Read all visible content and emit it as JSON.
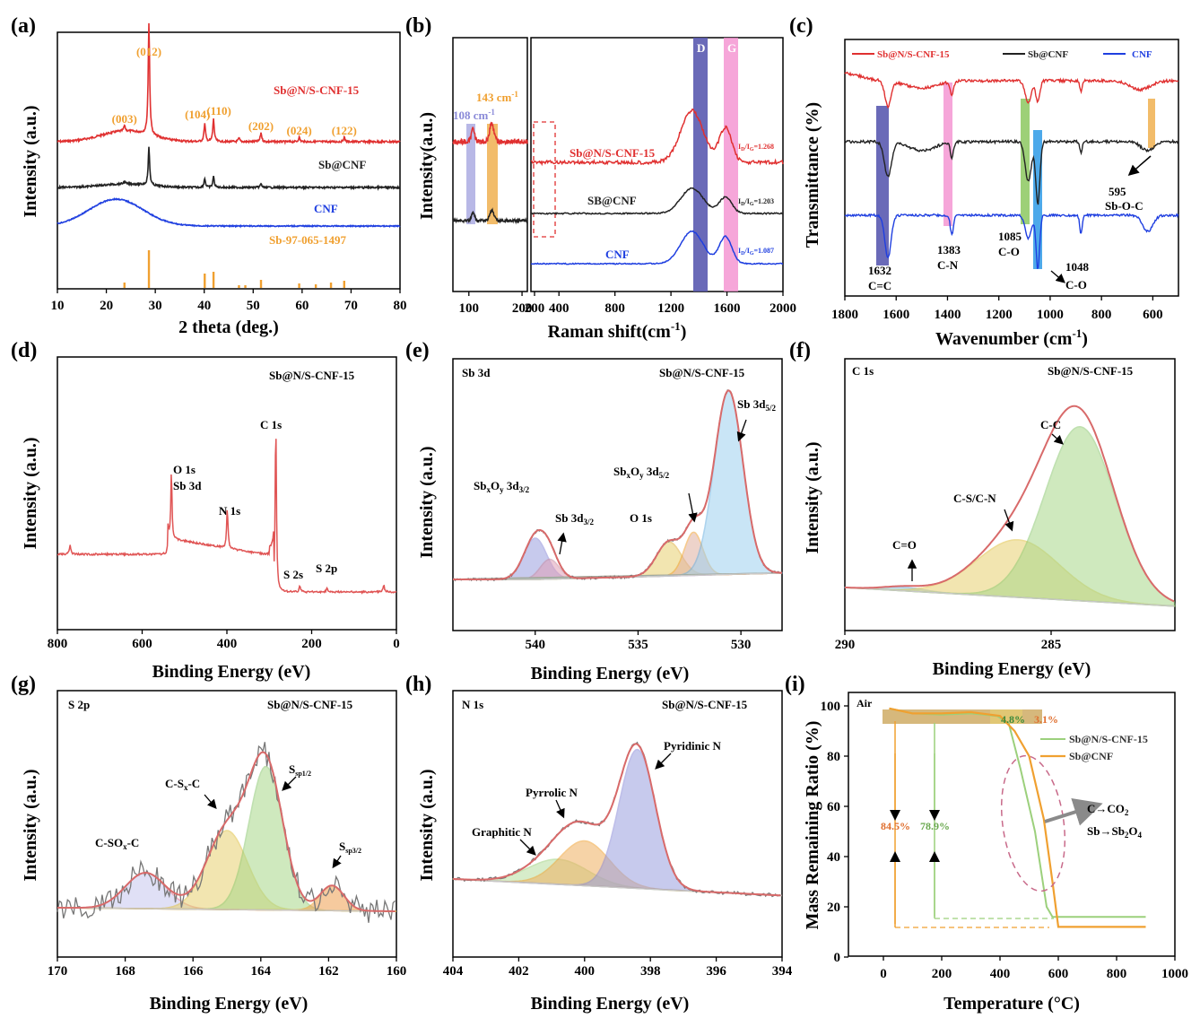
{
  "figure": {
    "panels": [
      "(a)",
      "(b)",
      "(c)",
      "(d)",
      "(e)",
      "(f)",
      "(g)",
      "(h)",
      "(i)"
    ]
  },
  "colors": {
    "red": "#e03030",
    "black": "#222222",
    "blue": "#1f3fe0",
    "orange": "#f0a030",
    "fit": "#d86a6a"
  },
  "chart_data": [
    {
      "id": "a",
      "type": "line",
      "title": "",
      "xlabel": "2 theta (deg.)",
      "ylabel": "Intensity (a.u.)",
      "xlim": [
        10,
        80
      ],
      "xticks": [
        10,
        20,
        30,
        40,
        50,
        60,
        70,
        80
      ],
      "series": [
        {
          "name": "Sb@N/S-CNF-15"
        },
        {
          "name": "Sb@CNF"
        },
        {
          "name": "CNF"
        },
        {
          "name": "Sb-97-065-1497"
        }
      ],
      "peak_labels": [
        {
          "label": "(012)",
          "x": 28.7
        },
        {
          "label": "(003)",
          "x": 23.7
        },
        {
          "label": "(104)",
          "x": 40.1
        },
        {
          "label": "(110)",
          "x": 41.9
        },
        {
          "label": "(202)",
          "x": 51.6
        },
        {
          "label": "(024)",
          "x": 59.4
        },
        {
          "label": "(122)",
          "x": 68.6
        }
      ],
      "reference_lines": [
        23.7,
        28.7,
        40.1,
        41.9,
        47.1,
        48.4,
        51.6,
        59.4,
        62.8,
        65.9,
        68.6
      ]
    },
    {
      "id": "b",
      "type": "line",
      "xlabel": "Raman shift(cm-1)",
      "xlabel_main": "Raman shift(cm",
      "xlabel_sup": "-1",
      "xlabel_end": ")",
      "ylabel": "Intensity(a.u.)",
      "xticks_left": [
        100,
        200
      ],
      "xticks_right": [
        200,
        400,
        800,
        1200,
        1600,
        2000
      ],
      "series": [
        {
          "name": "Sb@N/S-CNF-15",
          "ratio_main": "I",
          "ratio_sub1": "D",
          "ratio_mid": "/I",
          "ratio_sub2": "G",
          "ratio_val": "=1.268"
        },
        {
          "name": "SB@CNF",
          "ratio_main": "I",
          "ratio_sub1": "D",
          "ratio_mid": "/I",
          "ratio_sub2": "G",
          "ratio_val": "=1.203"
        },
        {
          "name": "CNF",
          "ratio_main": "I",
          "ratio_sub1": "D",
          "ratio_mid": "/I",
          "ratio_sub2": "G",
          "ratio_val": "=1.087"
        }
      ],
      "bands": [
        {
          "label": "D",
          "x": 1350
        },
        {
          "label": "G",
          "x": 1590
        },
        {
          "label": "108 cm-1",
          "label_main": "108 cm",
          "label_sup": "-1",
          "x": 108
        },
        {
          "label": "143 cm-1",
          "label_main": "143 cm",
          "label_sup": "-1",
          "x": 143
        }
      ]
    },
    {
      "id": "c",
      "type": "line",
      "xlabel": "Wavenumber (cm-1)",
      "xlabel_main": "Wavenumber (cm",
      "xlabel_sup": "-1",
      "xlabel_end": ")",
      "ylabel": "Transmittance (%)",
      "xlim": [
        1800,
        500
      ],
      "xticks": [
        1800,
        1600,
        1400,
        1200,
        1000,
        800,
        600
      ],
      "series": [
        {
          "name": "Sb@N/S-CNF-15"
        },
        {
          "name": "Sb@CNF"
        },
        {
          "name": "CNF"
        }
      ],
      "bands": [
        {
          "value": "1632",
          "bond": "C=C"
        },
        {
          "value": "1383",
          "bond": "C-N"
        },
        {
          "value": "1085",
          "bond": "C-O"
        },
        {
          "value": "1048",
          "bond": "C-O"
        },
        {
          "value": "595",
          "bond": "Sb-O-C"
        }
      ]
    },
    {
      "id": "d",
      "type": "line",
      "sample": "Sb@N/S-CNF-15",
      "xlabel": "Binding Energy (eV)",
      "ylabel": "Intensity (a.u.)",
      "xlim": [
        800,
        0
      ],
      "xticks": [
        800,
        600,
        400,
        200,
        0
      ],
      "peaks": [
        {
          "label": "O 1s",
          "x": 531
        },
        {
          "label": "Sb 3d",
          "x": 539
        },
        {
          "label": "N 1s",
          "x": 399
        },
        {
          "label": "C 1s",
          "x": 284.6
        },
        {
          "label": "S 2s",
          "x": 228
        },
        {
          "label": "S 2p",
          "x": 164
        }
      ]
    },
    {
      "id": "e",
      "type": "line",
      "title": "Sb 3d",
      "sample": "Sb@N/S-CNF-15",
      "xlabel": "Binding Energy (eV)",
      "ylabel": "Intensity (a.u.)",
      "xlim": [
        544,
        528
      ],
      "xticks": [
        540,
        535,
        530
      ],
      "peaks": [
        {
          "label_main": "Sb",
          "label_sub": "x",
          "label_mid": "O",
          "label_sub2": "y",
          "label_end": " 3d",
          "label_sub3": "3/2",
          "x": 540.0
        },
        {
          "label_main": "Sb 3d",
          "label_sub": "3/2",
          "x": 539.3
        },
        {
          "label_main": "O 1s",
          "x": 533.5
        },
        {
          "label_main": "Sb",
          "label_sub": "x",
          "label_mid": "O",
          "label_sub2": "y",
          "label_end": " 3d",
          "label_sub3": "5/2",
          "x": 532.3
        },
        {
          "label_main": "Sb 3d",
          "label_sub": "5/2",
          "x": 530.6
        }
      ]
    },
    {
      "id": "f",
      "type": "line",
      "title": "C 1s",
      "sample": "Sb@N/S-CNF-15",
      "xlabel": "Binding Energy (eV)",
      "ylabel": "Intensity (a.u.)",
      "xlim": [
        290,
        282
      ],
      "xticks": [
        290,
        285
      ],
      "peaks": [
        {
          "label": "C=O",
          "x": 288.6
        },
        {
          "label": "C-S/C-N",
          "x": 285.8
        },
        {
          "label": "C-C",
          "x": 284.6
        }
      ]
    },
    {
      "id": "g",
      "type": "line",
      "title": "S 2p",
      "sample": "Sb@N/S-CNF-15",
      "xlabel": "Binding Energy (eV)",
      "ylabel": "Intensity (a.u.)",
      "xlim": [
        170,
        160
      ],
      "xticks": [
        170,
        168,
        166,
        164,
        162,
        160
      ],
      "peaks": [
        {
          "label_main": "C-SO",
          "label_sub": "x",
          "label_end": "-C",
          "x": 167.4
        },
        {
          "label_main": "C-S",
          "label_sub": "x",
          "label_end": "-C",
          "x": 165.0
        },
        {
          "label_main": "S",
          "label_sub": "sp1/2",
          "x": 163.9
        },
        {
          "label_main": "S",
          "label_sub": "sp3/2",
          "x": 161.9
        }
      ]
    },
    {
      "id": "h",
      "type": "line",
      "title": "N 1s",
      "sample": "Sb@N/S-CNF-15",
      "xlabel": "Binding Energy (eV)",
      "ylabel": "Intensity (a.u.)",
      "xlim": [
        404,
        394
      ],
      "xticks": [
        404,
        402,
        400,
        398,
        396,
        394
      ],
      "peaks": [
        {
          "label": "Graphitic N",
          "x": 400.8
        },
        {
          "label": "Pyrrolic N",
          "x": 400.0
        },
        {
          "label": "Pyridinic N",
          "x": 398.4
        }
      ]
    },
    {
      "id": "i",
      "type": "line",
      "title": "Air",
      "xlabel": "Temperature (°C)",
      "ylabel": "Mass Remaining Ratio (%)",
      "xlim": [
        -120,
        1000
      ],
      "ylim": [
        0,
        105
      ],
      "xticks": [
        0,
        200,
        400,
        600,
        800,
        1000
      ],
      "yticks": [
        0,
        20,
        40,
        60,
        80,
        100
      ],
      "series": [
        {
          "name": "Sb@N/S-CNF-15",
          "x": [
            20,
            100,
            200,
            300,
            390,
            430,
            470,
            520,
            560,
            580,
            900
          ],
          "y": [
            99,
            97,
            96.5,
            97,
            96,
            93,
            75,
            50,
            20,
            16,
            16
          ]
        },
        {
          "name": "Sb@CNF",
          "x": [
            20,
            100,
            200,
            300,
            400,
            450,
            500,
            550,
            580,
            600,
            900
          ],
          "y": [
            99,
            97,
            97,
            97.5,
            96,
            90,
            80,
            55,
            30,
            12,
            12
          ]
        }
      ],
      "annotations": [
        "4.8%",
        "3.1%",
        "84.5%",
        "78.9%"
      ],
      "reaction_lines": [
        {
          "main": "C→CO",
          "sub": "2"
        },
        {
          "main": "Sb→Sb",
          "sub": "2",
          "end": "O",
          "sub2": "4"
        }
      ]
    }
  ]
}
